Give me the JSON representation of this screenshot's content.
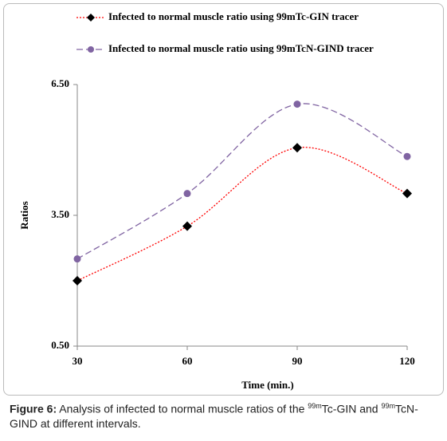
{
  "chart_data": {
    "type": "line",
    "x_label": "Time (min.)",
    "y_label": "Ratios",
    "x": [
      30,
      60,
      90,
      120
    ],
    "series": [
      {
        "name": "Infected to normal muscle ratio using 99mTc-GIN tracer",
        "color": "#ff0000",
        "marker": "diamond",
        "dash": "dotted",
        "values": [
          2.0,
          3.25,
          5.05,
          4.0
        ]
      },
      {
        "name": "Infected to normal muscle ratio using 99mTcN-GIND tracer",
        "color": "#8064a2",
        "marker": "circle",
        "dash": "dashed",
        "values": [
          2.5,
          4.0,
          6.05,
          4.85
        ]
      }
    ],
    "xlim": [
      30,
      120
    ],
    "xticks": [
      30,
      60,
      90,
      120
    ],
    "ylim": [
      0.5,
      6.5
    ],
    "yticks": [
      {
        "value": 0.5,
        "label": "0.50"
      },
      {
        "value": 3.5,
        "label": "3.50"
      },
      {
        "value": 6.5,
        "label": "6.50"
      }
    ],
    "grid": false,
    "legend": "top"
  },
  "caption": {
    "label": "Figure 6:",
    "segments": [
      " Analysis of infected to normal muscle ratios of the ",
      "99m",
      "Tc-GIN and ",
      "99m",
      "TcN-GIND at different intervals."
    ]
  }
}
